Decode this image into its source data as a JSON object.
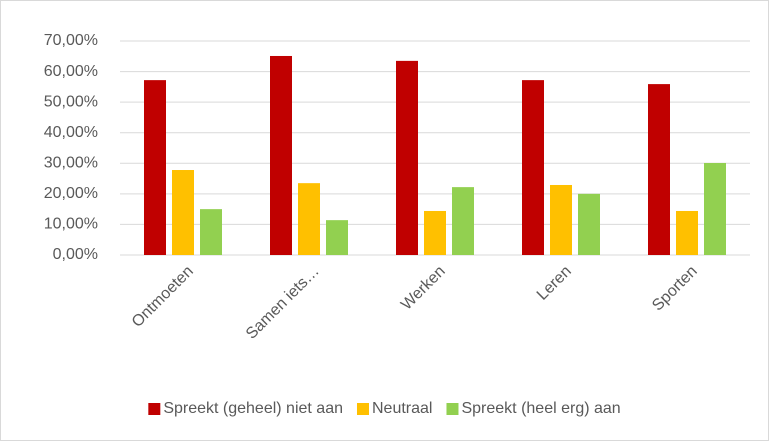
{
  "chart_data": {
    "type": "bar",
    "categories": [
      "Ontmoeten",
      "Samen iets…",
      "Werken",
      "Leren",
      "Sporten"
    ],
    "series": [
      {
        "name": "Spreekt (geheel) niet aan",
        "color": "#c00000",
        "values": [
          57.2,
          65.1,
          63.5,
          57.2,
          55.9
        ]
      },
      {
        "name": "Neutraal",
        "color": "#ffc000",
        "values": [
          27.8,
          23.5,
          14.4,
          22.9,
          14.4
        ]
      },
      {
        "name": "Spreekt (heel erg) aan",
        "color": "#92d050",
        "values": [
          15.0,
          11.4,
          22.2,
          20.0,
          30.1
        ]
      }
    ],
    "ylim": [
      0,
      70
    ],
    "yticks": [
      {
        "value": 0,
        "label": "0,00%"
      },
      {
        "value": 10,
        "label": "10,00%"
      },
      {
        "value": 20,
        "label": "20,00%"
      },
      {
        "value": 30,
        "label": "30,00%"
      },
      {
        "value": 40,
        "label": "40,00%"
      },
      {
        "value": 50,
        "label": "50,00%"
      },
      {
        "value": 60,
        "label": "60,00%"
      },
      {
        "value": 70,
        "label": "70,00%"
      }
    ],
    "grid": true,
    "legend": "bottom"
  }
}
